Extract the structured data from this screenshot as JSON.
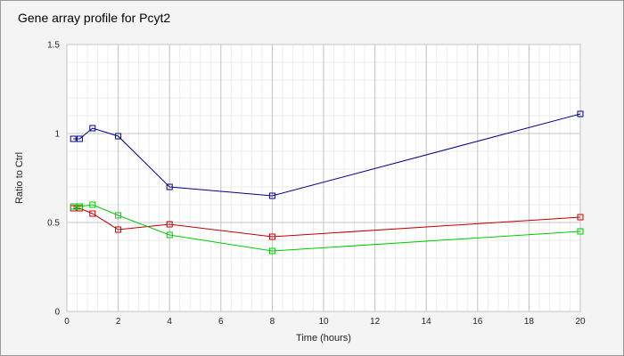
{
  "chart_data": {
    "type": "line",
    "title": "Gene array profile for Pcyt2",
    "xlabel": "Time (hours)",
    "ylabel": "Ratio to Ctrl",
    "xlim": [
      0,
      20
    ],
    "ylim": [
      0,
      1.5
    ],
    "x_ticks": [
      0,
      2,
      4,
      6,
      8,
      10,
      12,
      14,
      16,
      18,
      20
    ],
    "y_ticks": [
      0,
      0.5,
      1,
      1.5
    ],
    "y_tick_labels": [
      "0",
      "0.5",
      "1",
      "1.5"
    ],
    "grid": true,
    "series": [
      {
        "color": "#00008b",
        "x": [
          0.25,
          0.5,
          1,
          2,
          4,
          8,
          20
        ],
        "y": [
          0.97,
          0.97,
          1.03,
          0.985,
          0.7,
          0.65,
          1.11
        ]
      },
      {
        "color": "#c00000",
        "x": [
          0.25,
          0.5,
          1,
          2,
          4,
          8,
          20
        ],
        "y": [
          0.58,
          0.58,
          0.55,
          0.46,
          0.49,
          0.42,
          0.53
        ]
      },
      {
        "color": "#00cc00",
        "x": [
          0.25,
          0.5,
          1,
          2,
          4,
          8,
          20
        ],
        "y": [
          0.59,
          0.59,
          0.6,
          0.54,
          0.43,
          0.34,
          0.45
        ]
      }
    ]
  }
}
